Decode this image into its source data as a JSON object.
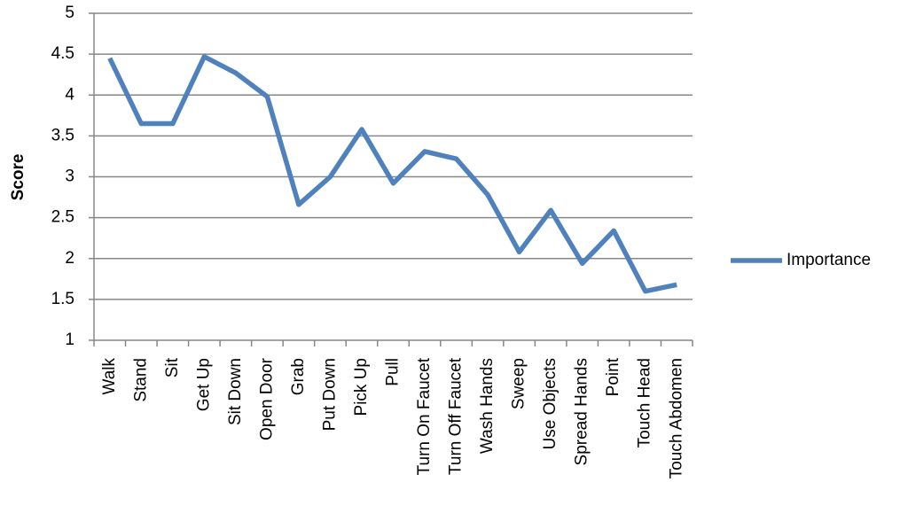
{
  "chart_data": {
    "type": "line",
    "y_label": "Score",
    "categories": [
      "Walk",
      "Stand",
      "Sit",
      "Get Up",
      "Sit Down",
      "Open Door",
      "Grab",
      "Put Down",
      "Pick Up",
      "Pull",
      "Turn On Faucet",
      "Turn Off Faucet",
      "Wash Hands",
      "Sweep",
      "Use Objects",
      "Spread Hands",
      "Point",
      "Touch Head",
      "Touch Abdomen"
    ],
    "series": [
      {
        "name": "Importance",
        "color": "#4f81bd",
        "values": [
          4.45,
          3.65,
          3.65,
          4.47,
          4.27,
          3.98,
          2.66,
          3.0,
          3.58,
          2.92,
          3.31,
          3.22,
          2.78,
          2.08,
          2.59,
          1.94,
          2.34,
          1.6,
          1.68
        ]
      }
    ],
    "ylim": [
      1,
      5
    ],
    "yticks": [
      1,
      1.5,
      2,
      2.5,
      3,
      3.5,
      4,
      4.5,
      5
    ],
    "grid": true,
    "legend": "right"
  }
}
